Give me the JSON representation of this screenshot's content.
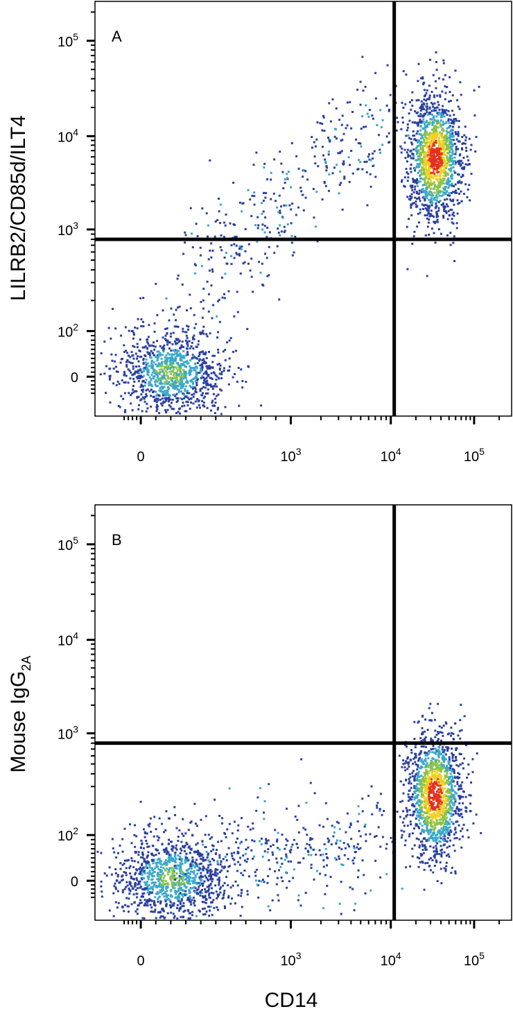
{
  "chart_data": [
    {
      "type": "scatter",
      "subtype": "flow-cytometry-density-dot-plot",
      "panel_label": "A",
      "xlabel": "CD14",
      "ylabel": "LILRB2/CD85d/ILT4",
      "x_scale": "biexponential (logicle)",
      "y_scale": "biexponential (logicle)",
      "x_ticks": [
        {
          "value": 0,
          "label": "0"
        },
        {
          "value": 1000,
          "label": "10",
          "exp": "3"
        },
        {
          "value": 10000,
          "label": "10",
          "exp": "4"
        },
        {
          "value": 100000,
          "label": "10",
          "exp": "5"
        }
      ],
      "y_ticks": [
        {
          "value": 0,
          "label": "0"
        },
        {
          "value": 100,
          "label": "10",
          "exp": "2"
        },
        {
          "value": 1000,
          "label": "10",
          "exp": "3"
        },
        {
          "value": 10000,
          "label": "10",
          "exp": "4"
        },
        {
          "value": 100000,
          "label": "10",
          "exp": "5"
        }
      ],
      "quadrant_gate": {
        "x": 11000,
        "y": 800
      },
      "populations": [
        {
          "name": "CD14- / LILRB2- cluster",
          "center_x": 200,
          "center_y": 10,
          "relative_density": "medium"
        },
        {
          "name": "CD14+ / LILRB2+ cluster",
          "center_x": 33000,
          "center_y": 6000,
          "relative_density": "high"
        },
        {
          "name": "diagonal transition events",
          "from_x": 300,
          "from_y": 300,
          "to_x": 10000,
          "to_y": 20000,
          "relative_density": "low"
        }
      ],
      "grid": false,
      "legend": "none"
    },
    {
      "type": "scatter",
      "subtype": "flow-cytometry-density-dot-plot",
      "panel_label": "B",
      "xlabel": "CD14",
      "ylabel": "Mouse IgG",
      "ylabel_sub": "2A",
      "x_scale": "biexponential (logicle)",
      "y_scale": "biexponential (logicle)",
      "x_ticks": [
        {
          "value": 0,
          "label": "0"
        },
        {
          "value": 1000,
          "label": "10",
          "exp": "3"
        },
        {
          "value": 10000,
          "label": "10",
          "exp": "4"
        },
        {
          "value": 100000,
          "label": "10",
          "exp": "5"
        }
      ],
      "y_ticks": [
        {
          "value": 0,
          "label": "0"
        },
        {
          "value": 100,
          "label": "10",
          "exp": "2"
        },
        {
          "value": 1000,
          "label": "10",
          "exp": "3"
        },
        {
          "value": 10000,
          "label": "10",
          "exp": "4"
        },
        {
          "value": 100000,
          "label": "10",
          "exp": "5"
        }
      ],
      "quadrant_gate": {
        "x": 11000,
        "y": 800
      },
      "populations": [
        {
          "name": "CD14- / isotype- cluster",
          "center_x": 200,
          "center_y": 10,
          "relative_density": "medium"
        },
        {
          "name": "CD14+ / isotype- cluster",
          "center_x": 33000,
          "center_y": 250,
          "relative_density": "high"
        },
        {
          "name": "low-y spread events",
          "from_x": 300,
          "from_y": 20,
          "to_x": 10000,
          "to_y": 100,
          "relative_density": "low"
        }
      ],
      "grid": false,
      "legend": "none"
    }
  ],
  "shared_xlabel": "CD14",
  "colors": {
    "density_low": "#2b3f9e",
    "density_mid_low": "#3aa8c9",
    "density_mid": "#8bc34a",
    "density_mid_high": "#f0d020",
    "density_high": "#e53020",
    "gate_line": "#000000",
    "axis": "#000000"
  }
}
